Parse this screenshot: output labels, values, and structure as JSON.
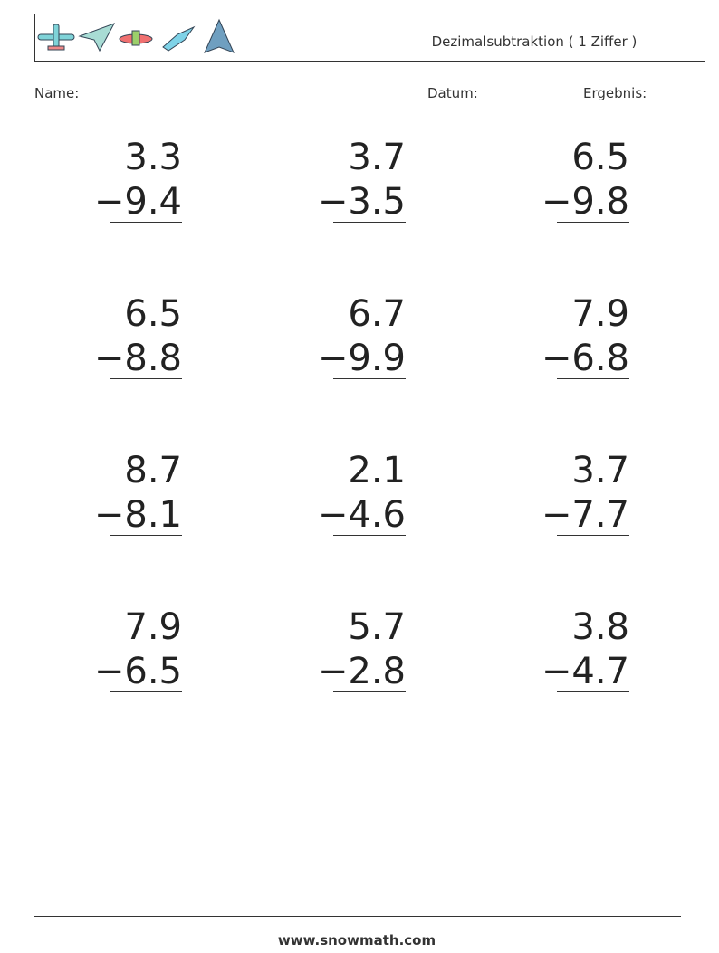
{
  "header": {
    "title": "Dezimalsubtraktion ( 1 Ziffer )"
  },
  "fields": {
    "name": "Name:",
    "date": "Datum:",
    "score": "Ergebnis:"
  },
  "problems": [
    {
      "top": "3.3",
      "bottom": "−9.4"
    },
    {
      "top": "3.7",
      "bottom": "−3.5"
    },
    {
      "top": "6.5",
      "bottom": "−9.8"
    },
    {
      "top": "6.5",
      "bottom": "−8.8"
    },
    {
      "top": "6.7",
      "bottom": "−9.9"
    },
    {
      "top": "7.9",
      "bottom": "−6.8"
    },
    {
      "top": "8.7",
      "bottom": "−8.1"
    },
    {
      "top": "2.1",
      "bottom": "−4.6"
    },
    {
      "top": "3.7",
      "bottom": "−7.7"
    },
    {
      "top": "7.9",
      "bottom": "−6.5"
    },
    {
      "top": "5.7",
      "bottom": "−2.8"
    },
    {
      "top": "3.8",
      "bottom": "−4.7"
    }
  ],
  "footer": {
    "site": "www.snowmath.com"
  }
}
